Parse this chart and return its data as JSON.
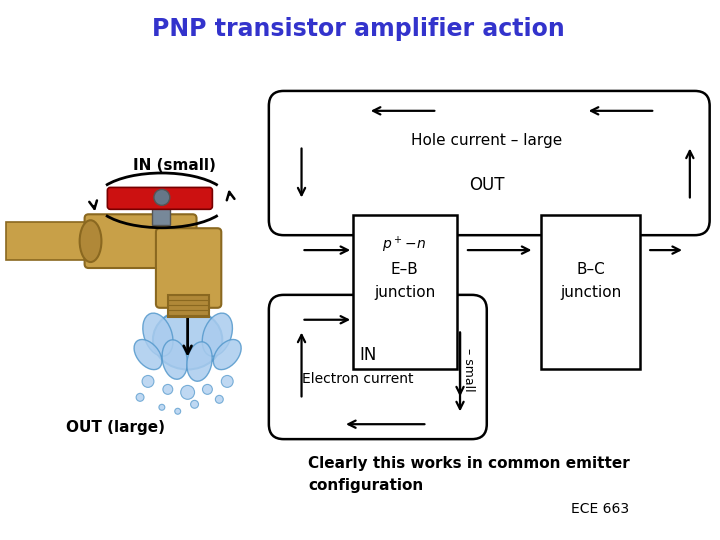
{
  "title": "PNP transistor amplifier action",
  "title_color": "#3333cc",
  "title_fontsize": 17,
  "bg_color": "#ffffff",
  "faucet_label_in": "IN (small)",
  "faucet_label_out": "OUT (large)",
  "label_hole_current": "Hole current – large",
  "label_out": "OUT",
  "label_in": "IN",
  "label_electron": "Electron current",
  "label_small": "– small",
  "bottom_text1": "Clearly this works in common emitter",
  "bottom_text2": "configuration",
  "bottom_text3": "ECE 663",
  "text_color": "#000000",
  "box_color": "#000000",
  "arrow_color": "#000000",
  "faucet_color": "#c8a048",
  "faucet_dark": "#8a6820",
  "faucet_mid": "#b08838",
  "water_blue": "#5599cc",
  "water_light": "#aaccee"
}
